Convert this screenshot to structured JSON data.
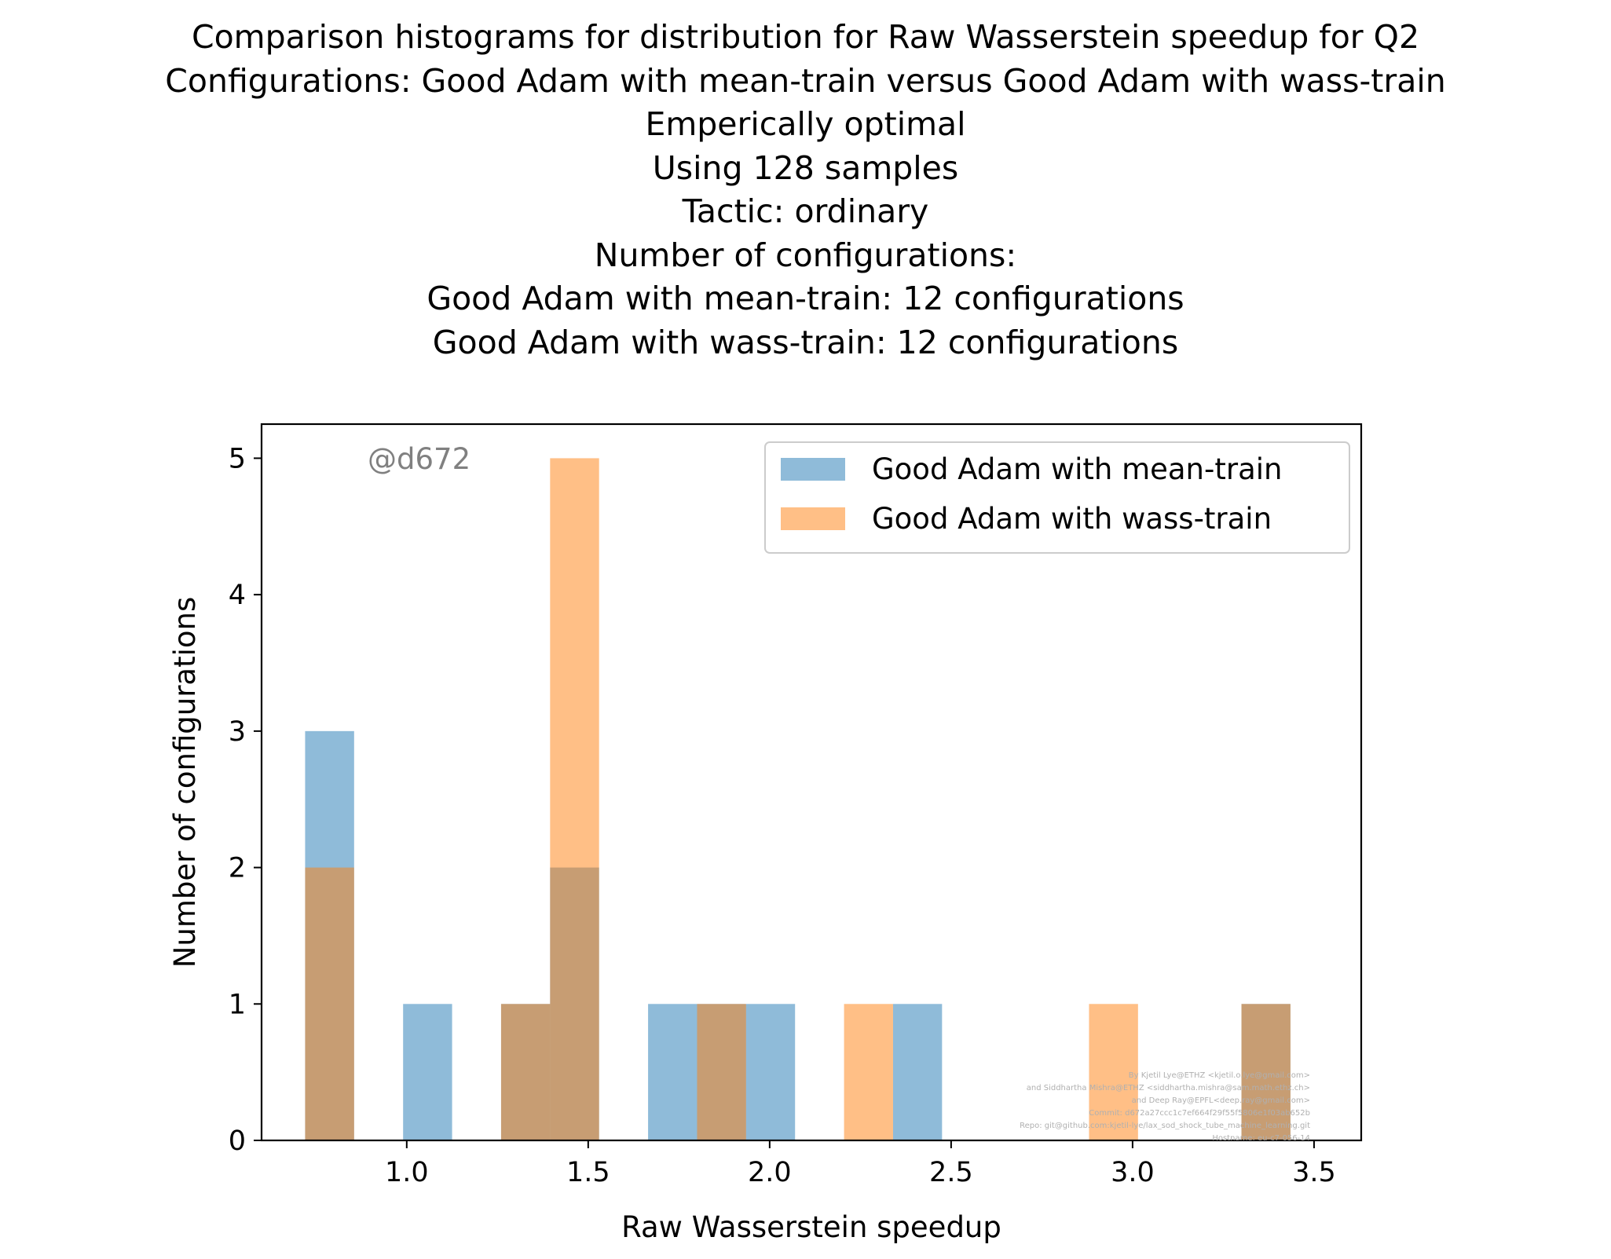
{
  "title_lines": [
    "Comparison histograms for distribution for Raw Wasserstein speedup for Q2",
    "Configurations: Good Adam with mean-train versus Good Adam with wass-train",
    "Emperically optimal",
    "Using 128 samples",
    "Tactic: ordinary",
    "Number of configurations:",
    "Good Adam with mean-train: 12 configurations",
    "Good Adam with wass-train: 12 configurations"
  ],
  "watermark": "@d672",
  "credits": [
    "By Kjetil Lye@ETHZ <kjetil.o.lye@gmail.com>",
    "and Siddhartha Mishra@ETHZ <siddhartha.mishra@sam.math.ethz.ch>",
    "and Deep Ray@EPFL<deep.ray@gmail.com>",
    "Commit: d672a27ccc1c7ef664f29f55f5806e1f03ab652b",
    "Repo: git@github.com:kjetil-lye/lax_sod_shock_tube_machine_learning.git",
    "Hostname: eu-c7-056-14"
  ],
  "chart_data": {
    "type": "bar",
    "subtype": "overlaid-histogram",
    "xlabel": "Raw Wasserstein speedup",
    "ylabel": "Number of configurations",
    "xlim": [
      0.6,
      3.63
    ],
    "ylim": [
      0,
      5.25
    ],
    "xticks": [
      "1.0",
      "1.5",
      "2.0",
      "2.5",
      "3.0",
      "3.5"
    ],
    "yticks": [
      "0",
      "1",
      "2",
      "3",
      "4",
      "5"
    ],
    "legend_position": "upper-right",
    "bin_width": 0.135,
    "series": [
      {
        "name": "Good Adam with mean-train",
        "color": "#1f77b4",
        "opacity": 0.5,
        "bins": [
          {
            "x0": 0.72,
            "count": 3
          },
          {
            "x0": 0.99,
            "count": 1
          },
          {
            "x0": 1.26,
            "count": 1
          },
          {
            "x0": 1.395,
            "count": 2
          },
          {
            "x0": 1.665,
            "count": 1
          },
          {
            "x0": 1.8,
            "count": 1
          },
          {
            "x0": 1.935,
            "count": 1
          },
          {
            "x0": 2.34,
            "count": 1
          },
          {
            "x0": 3.3,
            "count": 1
          }
        ]
      },
      {
        "name": "Good Adam with wass-train",
        "color": "#ff7f0e",
        "opacity": 0.5,
        "bins": [
          {
            "x0": 0.72,
            "count": 2
          },
          {
            "x0": 1.26,
            "count": 1
          },
          {
            "x0": 1.395,
            "count": 5
          },
          {
            "x0": 1.8,
            "count": 1
          },
          {
            "x0": 2.205,
            "count": 1
          },
          {
            "x0": 2.88,
            "count": 1
          },
          {
            "x0": 3.3,
            "count": 1
          }
        ]
      }
    ]
  }
}
